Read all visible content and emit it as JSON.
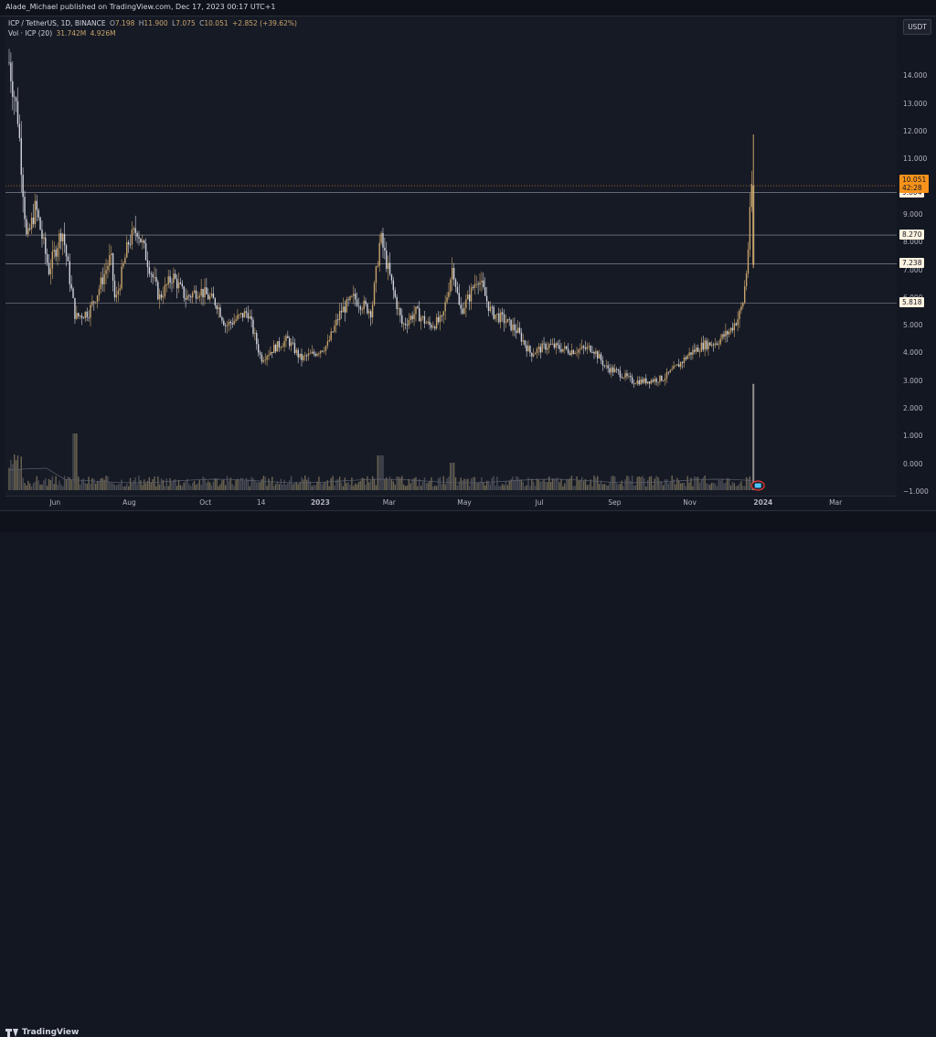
{
  "header": {
    "publisher_text": "Alade_Michael published on TradingView.com, Dec 17, 2023 00:17 UTC+1"
  },
  "legend": {
    "symbol": "ICP / TetherUS, 1D, BINANCE",
    "open_label": "O",
    "open": "7.198",
    "high_label": "H",
    "high": "11.900",
    "low_label": "L",
    "low": "7.075",
    "close_label": "C",
    "close": "10.051",
    "change": "+2.852 (+39.62%)",
    "vol_label": "Vol · ICP (20)",
    "vol_value": "31.742M",
    "vol_ma": "4.926M"
  },
  "currency_button": "USDT",
  "colors": {
    "background": "#161a25",
    "up": "#c9a46b",
    "down": "#d1d4dc",
    "accent_orange": "#f7931a",
    "tag_bg": "#fff3e0",
    "tag_text": "#131722"
  },
  "chart_data": {
    "type": "candlestick",
    "ylim": [
      -1.0,
      15.3
    ],
    "y_ticks": [
      "14.000",
      "13.000",
      "12.000",
      "11.000",
      "10.000",
      "9.000",
      "8.000",
      "7.000",
      "6.000",
      "5.000",
      "4.000",
      "3.000",
      "2.000",
      "1.000",
      "0.000",
      "−1.000"
    ],
    "x_ticks": [
      "Jun",
      "Aug",
      "Oct",
      "14",
      "2023",
      "Mar",
      "May",
      "Jul",
      "Sep",
      "Nov",
      "2024",
      "Mar"
    ],
    "horizontal_levels": [
      {
        "label": "9.804",
        "value": 9.804
      },
      {
        "label": "8.270",
        "value": 8.27
      },
      {
        "label": "7.238",
        "value": 7.238
      },
      {
        "label": "5.818",
        "value": 5.818
      }
    ],
    "current_price": {
      "label": "10.051",
      "countdown": "42:28",
      "value": 10.051
    },
    "price_path": [
      [
        0,
        14.5
      ],
      [
        0.01,
        12.5
      ],
      [
        0.02,
        8.0
      ],
      [
        0.03,
        9.3
      ],
      [
        0.045,
        7.0
      ],
      [
        0.06,
        8.5
      ],
      [
        0.075,
        5.3
      ],
      [
        0.09,
        5.5
      ],
      [
        0.1,
        6.2
      ],
      [
        0.115,
        7.5
      ],
      [
        0.12,
        5.8
      ],
      [
        0.135,
        8.0
      ],
      [
        0.145,
        8.5
      ],
      [
        0.16,
        7.0
      ],
      [
        0.17,
        6.0
      ],
      [
        0.185,
        6.8
      ],
      [
        0.2,
        6.0
      ],
      [
        0.215,
        6.3
      ],
      [
        0.235,
        5.8
      ],
      [
        0.245,
        5.0
      ],
      [
        0.255,
        5.2
      ],
      [
        0.27,
        5.5
      ],
      [
        0.285,
        3.8
      ],
      [
        0.3,
        4.2
      ],
      [
        0.315,
        4.5
      ],
      [
        0.33,
        3.8
      ],
      [
        0.345,
        4.0
      ],
      [
        0.36,
        4.3
      ],
      [
        0.375,
        5.5
      ],
      [
        0.39,
        6.0
      ],
      [
        0.41,
        5.5
      ],
      [
        0.42,
        8.2
      ],
      [
        0.435,
        6.2
      ],
      [
        0.445,
        5.0
      ],
      [
        0.46,
        5.5
      ],
      [
        0.475,
        5.0
      ],
      [
        0.49,
        5.2
      ],
      [
        0.502,
        7.2
      ],
      [
        0.51,
        5.5
      ],
      [
        0.52,
        6.0
      ],
      [
        0.53,
        6.8
      ],
      [
        0.545,
        5.5
      ],
      [
        0.56,
        5.2
      ],
      [
        0.575,
        4.8
      ],
      [
        0.59,
        4.0
      ],
      [
        0.61,
        4.3
      ],
      [
        0.635,
        4.1
      ],
      [
        0.66,
        4.2
      ],
      [
        0.675,
        3.5
      ],
      [
        0.69,
        3.3
      ],
      [
        0.705,
        3.0
      ],
      [
        0.72,
        3.0
      ],
      [
        0.74,
        3.1
      ],
      [
        0.755,
        3.5
      ],
      [
        0.77,
        4.0
      ],
      [
        0.785,
        4.3
      ],
      [
        0.8,
        4.4
      ],
      [
        0.815,
        4.8
      ],
      [
        0.825,
        5.3
      ],
      [
        0.83,
        5.8
      ],
      [
        0.835,
        7.2
      ],
      [
        0.84,
        10.05
      ]
    ],
    "spike_high": 11.9,
    "spike_low": 7.075
  },
  "footer": {
    "brand": "TradingView"
  }
}
